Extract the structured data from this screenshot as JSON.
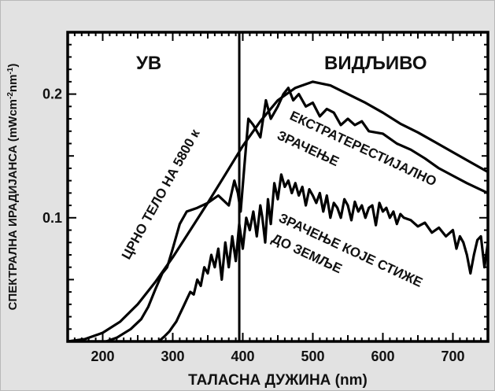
{
  "chart_data": {
    "type": "line",
    "xlabel": "ТАЛАСНА ДУЖИНА (nm)",
    "ylabel": "СПЕКТРАЛНА ИРАДИЈАНСА (mWcm",
    "ylabel_sup1": "-2",
    "ylabel_mid": "nm",
    "ylabel_sup2": "-1",
    "ylabel_close": ")",
    "xlim": [
      150,
      750
    ],
    "ylim": [
      0,
      0.25
    ],
    "x_ticks": [
      200,
      300,
      400,
      500,
      600,
      700
    ],
    "x_tick_labels": [
      "200",
      "300",
      "400",
      "500",
      "600",
      "700"
    ],
    "y_ticks": [
      0.1,
      0.2
    ],
    "y_tick_labels": [
      "0.1",
      "0.2"
    ],
    "divider_x": 395,
    "region_labels": {
      "uv": "УВ",
      "visible": "ВИДЉИВО"
    },
    "annotations": {
      "blackbody": "ЦРНО ТЕЛО НА 5800 к",
      "extra_line1": "ЕКСТРАТЕРЕСТИЈАЛНО",
      "extra_line2": "ЗРАЧЕЊЕ",
      "ground_line1": "ЗРАЧЕЊЕ КОЈЕ СТИЖЕ",
      "ground_line2": "ДО ЗЕМЉЕ"
    },
    "grid": false,
    "series": [
      {
        "key": "blackbody",
        "x": [
          150,
          175,
          200,
          225,
          250,
          275,
          300,
          325,
          350,
          375,
          400,
          425,
          450,
          475,
          500,
          525,
          550,
          575,
          600,
          625,
          650,
          675,
          700,
          725,
          750
        ],
        "y": [
          0.0,
          0.002,
          0.007,
          0.016,
          0.03,
          0.048,
          0.068,
          0.09,
          0.112,
          0.135,
          0.158,
          0.178,
          0.195,
          0.205,
          0.21,
          0.207,
          0.2,
          0.193,
          0.185,
          0.176,
          0.169,
          0.161,
          0.153,
          0.145,
          0.137
        ]
      },
      {
        "key": "extraterrestrial",
        "x": [
          205,
          220,
          240,
          255,
          265,
          275,
          285,
          292,
          300,
          310,
          320,
          335,
          350,
          365,
          380,
          388,
          393,
          397,
          402,
          408,
          415,
          425,
          433,
          440,
          450,
          458,
          465,
          472,
          480,
          490,
          500,
          510,
          520,
          530,
          540,
          550,
          560,
          570,
          580,
          600,
          620,
          640,
          660,
          680,
          700,
          720,
          750
        ],
        "y": [
          0.0,
          0.003,
          0.01,
          0.018,
          0.028,
          0.042,
          0.055,
          0.06,
          0.075,
          0.095,
          0.105,
          0.108,
          0.112,
          0.118,
          0.11,
          0.13,
          0.12,
          0.105,
          0.14,
          0.18,
          0.175,
          0.165,
          0.195,
          0.18,
          0.19,
          0.2,
          0.205,
          0.195,
          0.2,
          0.19,
          0.193,
          0.182,
          0.188,
          0.185,
          0.175,
          0.18,
          0.175,
          0.178,
          0.17,
          0.168,
          0.16,
          0.155,
          0.148,
          0.14,
          0.134,
          0.128,
          0.12
        ]
      },
      {
        "key": "ground",
        "x": [
          280,
          288,
          295,
          300,
          305,
          310,
          315,
          320,
          325,
          330,
          335,
          340,
          345,
          350,
          355,
          360,
          365,
          370,
          375,
          380,
          385,
          390,
          395,
          400,
          405,
          410,
          415,
          420,
          425,
          428,
          432,
          436,
          440,
          445,
          450,
          455,
          460,
          465,
          470,
          475,
          480,
          485,
          490,
          495,
          500,
          505,
          510,
          515,
          520,
          525,
          530,
          535,
          540,
          545,
          550,
          555,
          560,
          565,
          570,
          575,
          580,
          585,
          590,
          595,
          600,
          605,
          610,
          615,
          620,
          625,
          630,
          640,
          650,
          660,
          670,
          680,
          690,
          700,
          705,
          710,
          715,
          720,
          725,
          730,
          735,
          740,
          745,
          750
        ],
        "y": [
          0.0,
          0.004,
          0.008,
          0.012,
          0.016,
          0.022,
          0.028,
          0.034,
          0.04,
          0.038,
          0.05,
          0.045,
          0.06,
          0.055,
          0.07,
          0.06,
          0.075,
          0.05,
          0.08,
          0.06,
          0.085,
          0.065,
          0.095,
          0.075,
          0.1,
          0.09,
          0.105,
          0.085,
          0.11,
          0.1,
          0.08,
          0.115,
          0.095,
          0.128,
          0.115,
          0.135,
          0.125,
          0.13,
          0.12,
          0.128,
          0.118,
          0.125,
          0.11,
          0.123,
          0.118,
          0.112,
          0.12,
          0.105,
          0.118,
          0.1,
          0.112,
          0.108,
          0.1,
          0.115,
          0.11,
          0.098,
          0.113,
          0.105,
          0.11,
          0.1,
          0.108,
          0.11,
          0.094,
          0.112,
          0.105,
          0.108,
          0.1,
          0.105,
          0.095,
          0.103,
          0.1,
          0.098,
          0.093,
          0.096,
          0.088,
          0.092,
          0.085,
          0.09,
          0.075,
          0.085,
          0.08,
          0.07,
          0.055,
          0.07,
          0.082,
          0.085,
          0.06,
          0.08
        ]
      }
    ]
  }
}
